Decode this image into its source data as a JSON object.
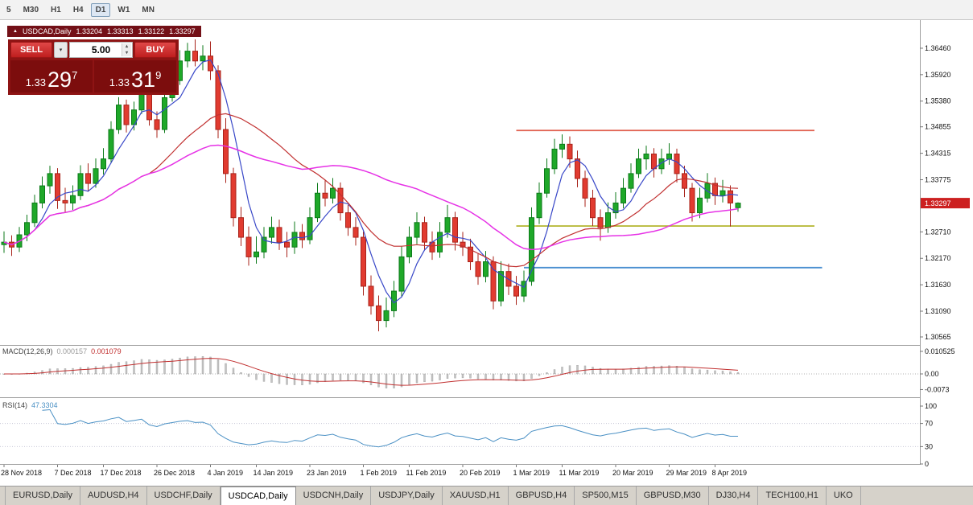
{
  "toolbar": {
    "timeframes": [
      {
        "label": "5",
        "active": false
      },
      {
        "label": "M30",
        "active": false
      },
      {
        "label": "H1",
        "active": false
      },
      {
        "label": "H4",
        "active": false
      },
      {
        "label": "D1",
        "active": true
      },
      {
        "label": "W1",
        "active": false
      },
      {
        "label": "MN",
        "active": false
      }
    ]
  },
  "icons": {
    "collapse_icon": "▲",
    "dropdown_arrow_icon": "▾",
    "spin_up_icon": "▴",
    "spin_down_icon": "▾"
  },
  "chart_header": {
    "symbol_title": "USDCAD,Daily",
    "open": "1.33204",
    "high": "1.33313",
    "low": "1.33122",
    "close": "1.33297"
  },
  "trade_panel": {
    "sell_label": "SELL",
    "buy_label": "BUY",
    "volume": "5.00",
    "sell_price": {
      "prefix": "1.33",
      "big": "29",
      "sup": "7"
    },
    "buy_price": {
      "prefix": "1.33",
      "big": "31",
      "sup": "9"
    }
  },
  "price_axis": {
    "labels": [
      "1.36460",
      "1.35920",
      "1.35380",
      "1.34855",
      "1.34315",
      "1.33775",
      "1.32710",
      "1.32170",
      "1.31630",
      "1.31090",
      "1.30565"
    ],
    "current_price": "1.33297",
    "current_price_color": "#cc1f1f"
  },
  "macd_panel": {
    "label": "MACD(12,26,9)",
    "value_main": "0.000157",
    "value_signal": "0.001079",
    "scale_labels": [
      "0.010525",
      "0.00",
      "-0.0073"
    ]
  },
  "rsi_panel": {
    "label": "RSI(14)",
    "value": "47.3304",
    "scale_labels": [
      "100",
      "70",
      "30",
      "0"
    ]
  },
  "bottom_tabs": [
    {
      "label": "EURUSD,Daily",
      "active": false
    },
    {
      "label": "AUDUSD,H4",
      "active": false
    },
    {
      "label": "USDCHF,Daily",
      "active": false
    },
    {
      "label": "USDCAD,Daily",
      "active": true
    },
    {
      "label": "USDCNH,Daily",
      "active": false
    },
    {
      "label": "USDJPY,Daily",
      "active": false
    },
    {
      "label": "XAUUSD,H1",
      "active": false
    },
    {
      "label": "GBPUSD,H4",
      "active": false
    },
    {
      "label": "SP500,M15",
      "active": false
    },
    {
      "label": "GBPUSD,M30",
      "active": false
    },
    {
      "label": "DJ30,H4",
      "active": false
    },
    {
      "label": "TECH100,H1",
      "active": false
    },
    {
      "label": "UKO",
      "active": false
    }
  ],
  "chart_data": {
    "type": "candlestick",
    "symbol": "USDCAD",
    "timeframe": "Daily",
    "ohlc_current": {
      "open": 1.33204,
      "high": 1.33313,
      "low": 1.33122,
      "close": 1.33297
    },
    "y_axis": {
      "min": 1.30417,
      "max": 1.36755
    },
    "x_labels": [
      {
        "text": "28 Nov 2018",
        "index": 0
      },
      {
        "text": "7 Dec 2018",
        "index": 7
      },
      {
        "text": "17 Dec 2018",
        "index": 13
      },
      {
        "text": "26 Dec 2018",
        "index": 20
      },
      {
        "text": "4 Jan 2019",
        "index": 27
      },
      {
        "text": "14 Jan 2019",
        "index": 33
      },
      {
        "text": "23 Jan 2019",
        "index": 40
      },
      {
        "text": "1 Feb 2019",
        "index": 47
      },
      {
        "text": "11 Feb 2019",
        "index": 53
      },
      {
        "text": "20 Feb 2019",
        "index": 60
      },
      {
        "text": "1 Mar 2019",
        "index": 67
      },
      {
        "text": "11 Mar 2019",
        "index": 73
      },
      {
        "text": "20 Mar 2019",
        "index": 80
      },
      {
        "text": "29 Mar 2019",
        "index": 87
      },
      {
        "text": "8 Apr 2019",
        "index": 93
      }
    ],
    "candles": [
      [
        1.3245,
        1.3272,
        1.3228,
        1.325
      ],
      [
        1.325,
        1.3264,
        1.3222,
        1.324
      ],
      [
        1.324,
        1.3281,
        1.323,
        1.3265
      ],
      [
        1.3265,
        1.3306,
        1.3252,
        1.329
      ],
      [
        1.329,
        1.3347,
        1.3281,
        1.333
      ],
      [
        1.333,
        1.3384,
        1.3319,
        1.3365
      ],
      [
        1.3365,
        1.3406,
        1.3349,
        1.339
      ],
      [
        1.339,
        1.3401,
        1.3318,
        1.3335
      ],
      [
        1.3335,
        1.3361,
        1.3311,
        1.333
      ],
      [
        1.333,
        1.3366,
        1.3316,
        1.3345
      ],
      [
        1.3345,
        1.3407,
        1.3336,
        1.339
      ],
      [
        1.339,
        1.3411,
        1.3353,
        1.337
      ],
      [
        1.337,
        1.3421,
        1.3361,
        1.34
      ],
      [
        1.34,
        1.3442,
        1.3388,
        1.342
      ],
      [
        1.342,
        1.3497,
        1.3411,
        1.348
      ],
      [
        1.348,
        1.3546,
        1.3471,
        1.353
      ],
      [
        1.353,
        1.3541,
        1.3474,
        1.349
      ],
      [
        1.349,
        1.3537,
        1.3478,
        1.352
      ],
      [
        1.352,
        1.3577,
        1.3512,
        1.356
      ],
      [
        1.356,
        1.3571,
        1.3488,
        1.35
      ],
      [
        1.35,
        1.3517,
        1.3463,
        1.348
      ],
      [
        1.348,
        1.3561,
        1.3473,
        1.3545
      ],
      [
        1.3545,
        1.3602,
        1.3537,
        1.358
      ],
      [
        1.358,
        1.3642,
        1.3571,
        1.362
      ],
      [
        1.362,
        1.3657,
        1.3607,
        1.364
      ],
      [
        1.364,
        1.3664,
        1.3609,
        1.362
      ],
      [
        1.362,
        1.3652,
        1.3601,
        1.363
      ],
      [
        1.363,
        1.366,
        1.3581,
        1.36
      ],
      [
        1.36,
        1.3611,
        1.3462,
        1.348
      ],
      [
        1.348,
        1.3503,
        1.3371,
        1.339
      ],
      [
        1.339,
        1.3402,
        1.3282,
        1.33
      ],
      [
        1.33,
        1.3322,
        1.3242,
        1.326
      ],
      [
        1.326,
        1.3282,
        1.3202,
        1.322
      ],
      [
        1.322,
        1.3262,
        1.3206,
        1.323
      ],
      [
        1.323,
        1.3281,
        1.3217,
        1.326
      ],
      [
        1.326,
        1.3302,
        1.3247,
        1.328
      ],
      [
        1.328,
        1.3296,
        1.3234,
        1.325
      ],
      [
        1.325,
        1.3271,
        1.3219,
        1.324
      ],
      [
        1.324,
        1.3292,
        1.3226,
        1.327
      ],
      [
        1.327,
        1.3287,
        1.3238,
        1.3255
      ],
      [
        1.3255,
        1.3321,
        1.3246,
        1.33
      ],
      [
        1.33,
        1.3371,
        1.3291,
        1.335
      ],
      [
        1.335,
        1.3376,
        1.3323,
        1.334
      ],
      [
        1.334,
        1.3381,
        1.3329,
        1.336
      ],
      [
        1.336,
        1.3372,
        1.3294,
        1.331
      ],
      [
        1.331,
        1.3326,
        1.3263,
        1.328
      ],
      [
        1.328,
        1.3301,
        1.3243,
        1.326
      ],
      [
        1.326,
        1.3272,
        1.3141,
        1.316
      ],
      [
        1.316,
        1.3182,
        1.3102,
        1.312
      ],
      [
        1.312,
        1.3141,
        1.3068,
        1.309
      ],
      [
        1.309,
        1.3137,
        1.3076,
        1.311
      ],
      [
        1.311,
        1.3171,
        1.3097,
        1.315
      ],
      [
        1.315,
        1.3241,
        1.3139,
        1.322
      ],
      [
        1.322,
        1.3282,
        1.3207,
        1.326
      ],
      [
        1.326,
        1.3311,
        1.3246,
        1.329
      ],
      [
        1.329,
        1.3302,
        1.3233,
        1.325
      ],
      [
        1.325,
        1.3272,
        1.3214,
        1.323
      ],
      [
        1.323,
        1.3291,
        1.3218,
        1.327
      ],
      [
        1.327,
        1.3326,
        1.3259,
        1.33
      ],
      [
        1.33,
        1.3312,
        1.3233,
        1.325
      ],
      [
        1.325,
        1.3271,
        1.3222,
        1.324
      ],
      [
        1.324,
        1.3257,
        1.3193,
        1.321
      ],
      [
        1.321,
        1.3227,
        1.3163,
        1.318
      ],
      [
        1.318,
        1.3232,
        1.3168,
        1.321
      ],
      [
        1.321,
        1.3221,
        1.3113,
        1.313
      ],
      [
        1.313,
        1.3211,
        1.3119,
        1.319
      ],
      [
        1.319,
        1.3206,
        1.3142,
        1.316
      ],
      [
        1.316,
        1.3181,
        1.3122,
        1.314
      ],
      [
        1.314,
        1.3192,
        1.3128,
        1.317
      ],
      [
        1.317,
        1.3321,
        1.3161,
        1.33
      ],
      [
        1.33,
        1.3372,
        1.3287,
        1.335
      ],
      [
        1.335,
        1.3421,
        1.3341,
        1.34
      ],
      [
        1.34,
        1.3461,
        1.3389,
        1.344
      ],
      [
        1.344,
        1.347,
        1.3422,
        1.345
      ],
      [
        1.345,
        1.3466,
        1.3402,
        1.342
      ],
      [
        1.342,
        1.3437,
        1.3362,
        1.338
      ],
      [
        1.338,
        1.3396,
        1.3322,
        1.334
      ],
      [
        1.334,
        1.3357,
        1.3283,
        1.33
      ],
      [
        1.33,
        1.3317,
        1.3253,
        1.328
      ],
      [
        1.328,
        1.3331,
        1.3269,
        1.331
      ],
      [
        1.331,
        1.3352,
        1.3298,
        1.333
      ],
      [
        1.333,
        1.3381,
        1.3319,
        1.336
      ],
      [
        1.336,
        1.3411,
        1.3351,
        1.339
      ],
      [
        1.339,
        1.3441,
        1.3381,
        1.342
      ],
      [
        1.342,
        1.3447,
        1.3398,
        1.343
      ],
      [
        1.343,
        1.3442,
        1.3382,
        1.34
      ],
      [
        1.34,
        1.3441,
        1.3389,
        1.342
      ],
      [
        1.342,
        1.3452,
        1.3408,
        1.343
      ],
      [
        1.343,
        1.3441,
        1.3372,
        1.339
      ],
      [
        1.339,
        1.3406,
        1.3342,
        1.336
      ],
      [
        1.336,
        1.3371,
        1.3292,
        1.331
      ],
      [
        1.331,
        1.3361,
        1.3299,
        1.334
      ],
      [
        1.334,
        1.3391,
        1.3331,
        1.337
      ],
      [
        1.337,
        1.3382,
        1.3326,
        1.3345
      ],
      [
        1.3345,
        1.3377,
        1.3331,
        1.3355
      ],
      [
        1.3355,
        1.3366,
        1.3282,
        1.333
      ],
      [
        1.33204,
        1.33313,
        1.33122,
        1.33297
      ]
    ],
    "moving_averages": [
      {
        "period": 5,
        "color": "#3948c8"
      },
      {
        "period": 20,
        "color": "#c13030"
      },
      {
        "period": 40,
        "color": "#e632e6"
      }
    ],
    "hlines": [
      {
        "price": 1.3478,
        "color": "#e0604f",
        "from_index": 67,
        "to_index": 106
      },
      {
        "price": 1.3283,
        "color": "#b8ba3c",
        "from_index": 67,
        "to_index": 106
      },
      {
        "price": 1.3198,
        "color": "#4a8fd0",
        "from_index": 68,
        "to_index": 107
      }
    ],
    "macd": {
      "fast": 12,
      "slow": 26,
      "signal": 9,
      "value_main": 0.000157,
      "value_signal": 0.001079,
      "scale": [
        0.010525,
        0,
        -0.0073
      ]
    },
    "rsi": {
      "period": 14,
      "value": 47.3304,
      "levels": [
        70,
        30
      ],
      "scale": [
        100,
        70,
        30,
        0
      ]
    }
  }
}
